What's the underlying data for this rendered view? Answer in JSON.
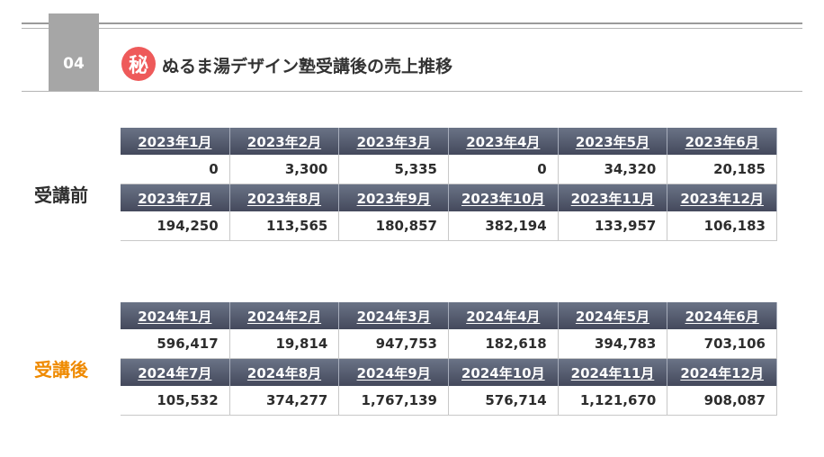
{
  "section_number": "04",
  "badge_glyph": "秘",
  "title": "ぬるま湯デザイン塾受講後の売上推移",
  "colors": {
    "header_bg": "#4b5063",
    "badge_red": "#ee5a5a",
    "after_label": "#ef8a00",
    "section_box": "#a6a6a6"
  },
  "before": {
    "label": "受講前",
    "rows": [
      {
        "months": [
          "2023年1月",
          "2023年2月",
          "2023年3月",
          "2023年4月",
          "2023年5月",
          "2023年6月"
        ],
        "values": [
          "0",
          "3,300",
          "5,335",
          "0",
          "34,320",
          "20,185"
        ]
      },
      {
        "months": [
          "2023年7月",
          "2023年8月",
          "2023年9月",
          "2023年10月",
          "2023年11月",
          "2023年12月"
        ],
        "values": [
          "194,250",
          "113,565",
          "180,857",
          "382,194",
          "133,957",
          "106,183"
        ]
      }
    ]
  },
  "after": {
    "label": "受講後",
    "rows": [
      {
        "months": [
          "2024年1月",
          "2024年2月",
          "2024年3月",
          "2024年4月",
          "2024年5月",
          "2024年6月"
        ],
        "values": [
          "596,417",
          "19,814",
          "947,753",
          "182,618",
          "394,783",
          "703,106"
        ]
      },
      {
        "months": [
          "2024年7月",
          "2024年8月",
          "2024年9月",
          "2024年10月",
          "2024年11月",
          "2024年12月"
        ],
        "values": [
          "105,532",
          "374,277",
          "1,767,139",
          "576,714",
          "1,121,670",
          "908,087"
        ]
      }
    ]
  }
}
